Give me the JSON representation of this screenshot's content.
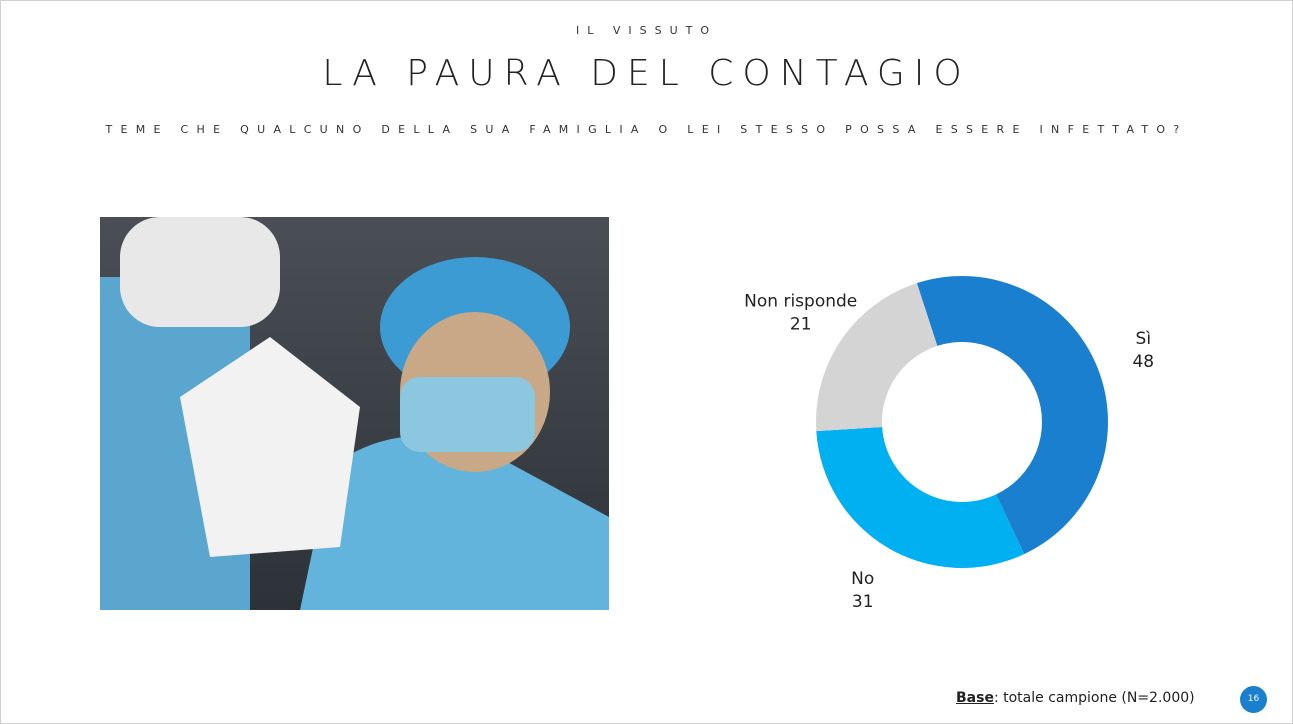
{
  "header": {
    "kicker": "IL VISSUTO",
    "title": "LA PAURA DEL CONTAGIO",
    "question": "TEME CHE QUALCUNO DELLA SUA FAMIGLIA O LEI STESSO POSSA ESSERE INFETTATO?"
  },
  "chart_data": {
    "type": "donut",
    "categories": [
      "Sì",
      "No",
      "Non risponde"
    ],
    "values": [
      48,
      31,
      21
    ],
    "colors": [
      "#1a7fcf",
      "#00b0f0",
      "#d4d4d4"
    ]
  },
  "footer": {
    "base_label": "Base",
    "base_text": ": totale campione (N=2.000)",
    "page": "16"
  }
}
